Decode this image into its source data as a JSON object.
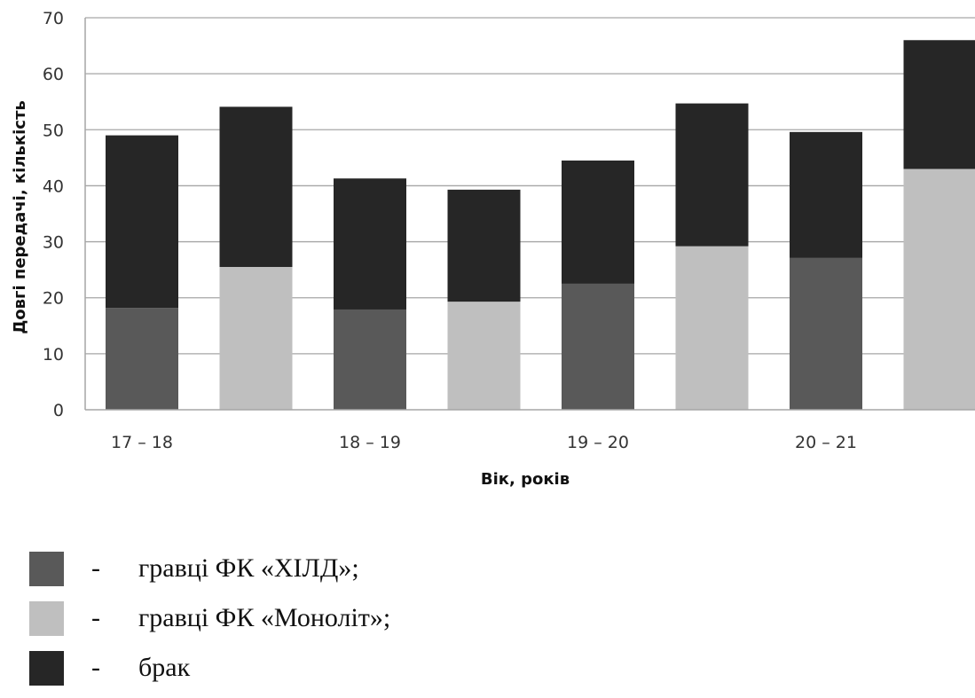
{
  "chart_data": {
    "type": "bar",
    "stacked": true,
    "xlabel": "Вік, років",
    "ylabel": "Довгі передачі, кількість",
    "ylim": [
      0,
      70
    ],
    "yticks": [
      0,
      10,
      20,
      30,
      40,
      50,
      60,
      70
    ],
    "category_labels": [
      "17 – 18",
      "18 – 19",
      "19 – 20",
      "20 – 21"
    ],
    "grid": true,
    "bars": [
      {
        "group": "17 – 18",
        "team": "гравці ФК «ХІЛД»;",
        "base": 18.2,
        "brak": 30.8
      },
      {
        "group": "17 – 18",
        "team": "гравці ФК «Моноліт»;",
        "base": 25.5,
        "brak": 28.6
      },
      {
        "group": "18 – 19",
        "team": "гравці ФК «ХІЛД»;",
        "base": 17.9,
        "brak": 23.4
      },
      {
        "group": "18 – 19",
        "team": "гравці ФК «Моноліт»;",
        "base": 19.3,
        "brak": 20.0
      },
      {
        "group": "19 – 20",
        "team": "гравці ФК «ХІЛД»;",
        "base": 22.5,
        "brak": 22.0
      },
      {
        "group": "19 – 20",
        "team": "гравці ФК «Моноліт»;",
        "base": 29.2,
        "brak": 25.5
      },
      {
        "group": "20 – 21",
        "team": "гравці ФК «ХІЛД»;",
        "base": 27.1,
        "brak": 22.5
      },
      {
        "group": "20 – 21",
        "team": "гравці ФК «Моноліт»;",
        "base": 43.0,
        "brak": 23.0
      }
    ],
    "colors": {
      "hild": "#595959",
      "monolit": "#bfbfbf",
      "brak": "#262626",
      "grid": "#a6a6a6"
    }
  },
  "legend": [
    {
      "dash": "-",
      "label": "гравці ФК «ХІЛД»;",
      "color": "#595959"
    },
    {
      "dash": "-",
      "label": "гравці ФК «Моноліт»;",
      "color": "#bfbfbf"
    },
    {
      "dash": "-",
      "label": "брак",
      "color": "#262626"
    }
  ]
}
